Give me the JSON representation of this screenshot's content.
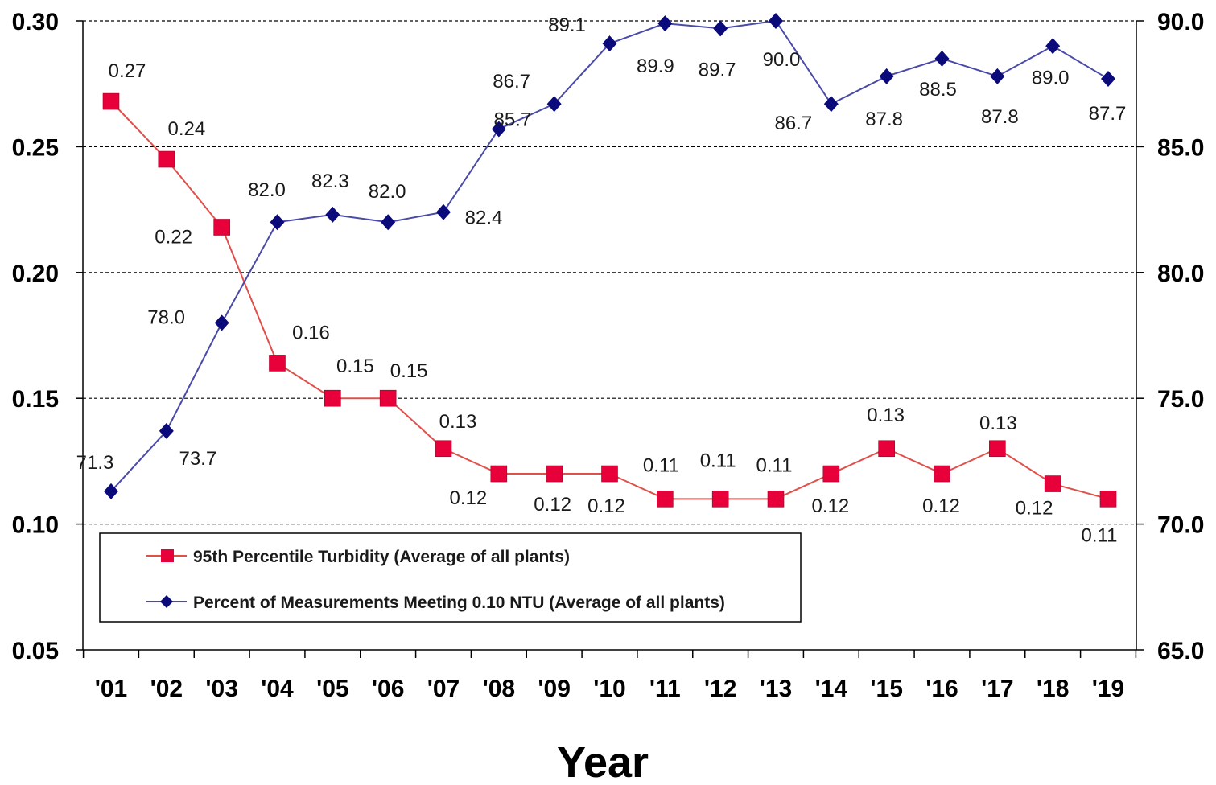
{
  "chart_data": {
    "type": "line",
    "categories": [
      "'01",
      "'02",
      "'03",
      "'04",
      "'05",
      "'06",
      "'07",
      "'08",
      "'09",
      "'10",
      "'11",
      "'12",
      "'13",
      "'14",
      "'15",
      "'16",
      "'17",
      "'18",
      "'19"
    ],
    "xlabel": "Year",
    "y_left": {
      "ylim": [
        0.05,
        0.3
      ],
      "ticks": [
        "0.05",
        "0.10",
        "0.15",
        "0.20",
        "0.25",
        "0.30"
      ]
    },
    "y_right": {
      "ylim": [
        65.0,
        90.0
      ],
      "ticks": [
        "65.0",
        "70.0",
        "75.0",
        "80.0",
        "85.0",
        "90.0"
      ]
    },
    "grid": "dashed horizontal",
    "legend_position": "bottom-left inside plot",
    "series": [
      {
        "name": "95th Percentile Turbidity (Average of all plants)",
        "axis": "left",
        "color": "#e8003a",
        "line_color": "#e0504a",
        "marker": "square",
        "values": [
          0.268,
          0.245,
          0.218,
          0.164,
          0.15,
          0.15,
          0.13,
          0.12,
          0.12,
          0.12,
          0.11,
          0.11,
          0.11,
          0.12,
          0.13,
          0.12,
          0.13,
          0.116,
          0.11
        ],
        "labels": [
          "0.27",
          "0.24",
          "0.22",
          "0.16",
          "0.15",
          "0.15",
          "0.13",
          "0.12",
          "0.12",
          "0.12",
          "0.11",
          "0.11",
          "0.11",
          "0.12",
          "0.13",
          "0.12",
          "0.13",
          "0.12",
          "0.11"
        ]
      },
      {
        "name": "Percent of Measurements Meeting 0.10 NTU (Average of all plants)",
        "axis": "right",
        "color": "#0a0a7a",
        "line_color": "#4a4aa8",
        "marker": "diamond",
        "values": [
          71.3,
          73.7,
          78.0,
          82.0,
          82.3,
          82.0,
          82.4,
          85.7,
          86.7,
          89.1,
          89.9,
          89.7,
          90.0,
          86.7,
          87.8,
          88.5,
          87.8,
          89.0,
          87.7
        ],
        "labels": [
          "71.3",
          "73.7",
          "78.0",
          "82.0",
          "82.3",
          "82.0",
          "82.4",
          "85.7",
          "86.7",
          "89.1",
          "89.9",
          "89.7",
          "90.0",
          "86.7",
          "87.8",
          "88.5",
          "87.8",
          "89.0",
          "87.7"
        ]
      }
    ]
  }
}
